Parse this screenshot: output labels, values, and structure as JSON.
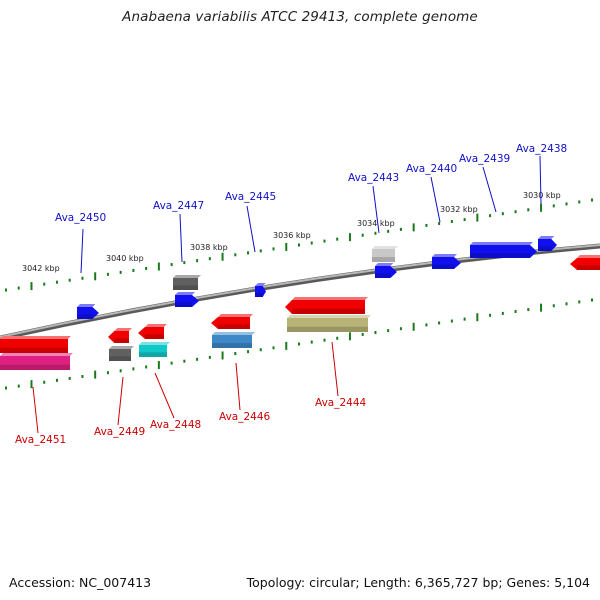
{
  "header": {
    "title": "Anabaena variabilis ATCC 29413, complete genome"
  },
  "footer": {
    "accession": "Accession: NC_007413",
    "summary": "Topology: circular; Length: 6,365,727 bp; Genes: 5,104"
  },
  "colors": {
    "strand_top_label": "#1010c8",
    "strand_bottom_label": "#cc0000",
    "backbone": "#808080",
    "tick": "#1a7a1a"
  },
  "ticks": [
    {
      "label": "3042 kbp"
    },
    {
      "label": "3040 kbp"
    },
    {
      "label": "3038 kbp"
    },
    {
      "label": "3036 kbp"
    },
    {
      "label": "3034 kbp"
    },
    {
      "label": "3032 kbp"
    },
    {
      "label": "3030 kbp"
    }
  ],
  "genes_top": [
    {
      "label": "Ava_2450"
    },
    {
      "label": "Ava_2447"
    },
    {
      "label": "Ava_2445"
    },
    {
      "label": "Ava_2443"
    },
    {
      "label": "Ava_2440"
    },
    {
      "label": "Ava_2439"
    },
    {
      "label": "Ava_2438"
    }
  ],
  "genes_bottom": [
    {
      "label": "Ava_2451"
    },
    {
      "label": "Ava_2449"
    },
    {
      "label": "Ava_2448"
    },
    {
      "label": "Ava_2446"
    },
    {
      "label": "Ava_2444"
    }
  ]
}
